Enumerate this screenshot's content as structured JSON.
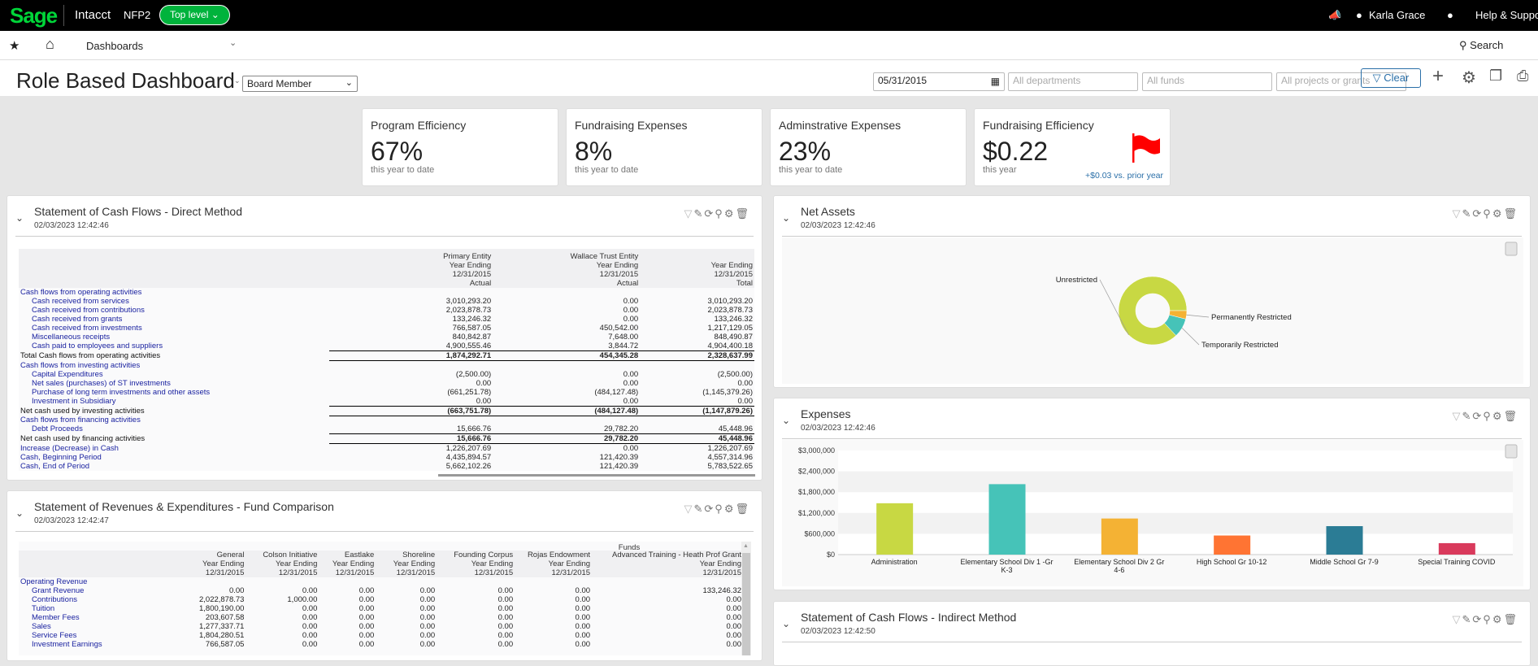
{
  "topbar": {
    "logo": "Sage",
    "app": "Intacct",
    "company": "NFP2",
    "entity": "Top level",
    "user": "Karla Grace",
    "help": "Help & Support"
  },
  "nav": {
    "menu": "Dashboards",
    "search": "Search"
  },
  "title": {
    "text": "Role Based Dashboard",
    "role": "Board Member",
    "date": "05/31/2015",
    "departments": "All departments",
    "funds": "All funds",
    "projects": "All projects or grants",
    "clear": "Clear"
  },
  "kpis": [
    {
      "title": "Program Efficiency",
      "value": "67%",
      "sub": "this year to date"
    },
    {
      "title": "Fundraising Expenses",
      "value": "8%",
      "sub": "this year to date"
    },
    {
      "title": "Adminstrative Expenses",
      "value": "23%",
      "sub": "this year to date"
    },
    {
      "title": "Fundraising Efficiency",
      "value": "$0.22",
      "sub": "this year",
      "delta": "+$0.03 vs. prior year",
      "flag_color": "#ff0000"
    }
  ],
  "cashflow": {
    "title": "Statement of Cash Flows - Direct Method",
    "date": "02/03/2023 12:42:46",
    "headers": [
      [
        "Primary Entity",
        "Year Ending",
        "12/31/2015",
        "Actual"
      ],
      [
        "Wallace Trust Entity",
        "Year Ending",
        "12/31/2015",
        "Actual"
      ],
      [
        "",
        "Year Ending",
        "12/31/2015",
        "Total"
      ]
    ],
    "rows": [
      {
        "label": "Cash flows from operating activities",
        "kind": "section",
        "values": [
          "",
          "",
          ""
        ]
      },
      {
        "label": "Cash received from services",
        "kind": "item",
        "values": [
          "3,010,293.20",
          "0.00",
          "3,010,293.20"
        ]
      },
      {
        "label": "Cash received from contributions",
        "kind": "item",
        "values": [
          "2,023,878.73",
          "0.00",
          "2,023,878.73"
        ]
      },
      {
        "label": "Cash received from grants",
        "kind": "item",
        "values": [
          "133,246.32",
          "0.00",
          "133,246.32"
        ]
      },
      {
        "label": "Cash received from investments",
        "kind": "item",
        "values": [
          "766,587.05",
          "450,542.00",
          "1,217,129.05"
        ]
      },
      {
        "label": "Miscellaneous receipts",
        "kind": "item",
        "values": [
          "840,842.87",
          "7,648.00",
          "848,490.87"
        ]
      },
      {
        "label": "Cash paid to employees and suppliers",
        "kind": "item",
        "values": [
          "4,900,555.46",
          "3,844.72",
          "4,904,400.18"
        ]
      },
      {
        "label": "Total Cash flows from operating activities",
        "kind": "total",
        "values": [
          "1,874,292.71",
          "454,345.28",
          "2,328,637.99"
        ]
      },
      {
        "label": "Cash flows from investing activities",
        "kind": "section",
        "values": [
          "",
          "",
          ""
        ]
      },
      {
        "label": "Capital Expenditures",
        "kind": "item",
        "values": [
          "(2,500.00)",
          "0.00",
          "(2,500.00)"
        ]
      },
      {
        "label": "Net sales (purchases) of ST investments",
        "kind": "item",
        "values": [
          "0.00",
          "0.00",
          "0.00"
        ]
      },
      {
        "label": "Purchase of long term investments and other assets",
        "kind": "item",
        "values": [
          "(661,251.78)",
          "(484,127.48)",
          "(1,145,379.26)"
        ]
      },
      {
        "label": "Investment in Subsidiary",
        "kind": "item",
        "values": [
          "0.00",
          "0.00",
          "0.00"
        ]
      },
      {
        "label": "Net cash used by investing activities",
        "kind": "total",
        "values": [
          "(663,751.78)",
          "(484,127.48)",
          "(1,147,879.26)"
        ]
      },
      {
        "label": "Cash flows from financing activities",
        "kind": "section",
        "values": [
          "",
          "",
          ""
        ]
      },
      {
        "label": "Debt Proceeds",
        "kind": "item",
        "values": [
          "15,666.76",
          "29,782.20",
          "45,448.96"
        ]
      },
      {
        "label": "Net cash used by financing activities",
        "kind": "total",
        "values": [
          "15,666.76",
          "29,782.20",
          "45,448.96"
        ]
      },
      {
        "label": "Increase (Decrease) in Cash",
        "kind": "section",
        "values": [
          "1,226,207.69",
          "0.00",
          "1,226,207.69"
        ]
      },
      {
        "label": "Cash, Beginning Period",
        "kind": "section",
        "values": [
          "4,435,894.57",
          "121,420.39",
          "4,557,314.96"
        ]
      },
      {
        "label": "Cash, End of Period",
        "kind": "section",
        "values": [
          "5,662,102.26",
          "121,420.39",
          "5,783,522.65"
        ]
      }
    ]
  },
  "fund": {
    "title": "Statement of Revenues & Expenditures - Fund Comparison",
    "date": "02/03/2023 12:42:47",
    "group": "Funds",
    "headers": [
      [
        "General",
        "Year Ending",
        "12/31/2015"
      ],
      [
        "Colson Initiative",
        "Year Ending",
        "12/31/2015"
      ],
      [
        "Eastlake",
        "Year Ending",
        "12/31/2015"
      ],
      [
        "Shoreline",
        "Year Ending",
        "12/31/2015"
      ],
      [
        "Founding Corpus",
        "Year Ending",
        "12/31/2015"
      ],
      [
        "Rojas Endowment",
        "Year Ending",
        "12/31/2015"
      ],
      [
        "Advanced Training - Heath Prof Grant",
        "Year Ending",
        "12/31/2015"
      ]
    ],
    "rows": [
      {
        "label": "Operating Revenue",
        "kind": "section",
        "values": [
          "",
          "",
          "",
          "",
          "",
          "",
          ""
        ]
      },
      {
        "label": "Grant Revenue",
        "kind": "item",
        "values": [
          "0.00",
          "0.00",
          "0.00",
          "0.00",
          "0.00",
          "0.00",
          "133,246.32"
        ]
      },
      {
        "label": "Contributions",
        "kind": "item",
        "values": [
          "2,022,878.73",
          "1,000.00",
          "0.00",
          "0.00",
          "0.00",
          "0.00",
          "0.00"
        ]
      },
      {
        "label": "Tuition",
        "kind": "item",
        "values": [
          "1,800,190.00",
          "0.00",
          "0.00",
          "0.00",
          "0.00",
          "0.00",
          "0.00"
        ]
      },
      {
        "label": "Member Fees",
        "kind": "item",
        "values": [
          "203,607.58",
          "0.00",
          "0.00",
          "0.00",
          "0.00",
          "0.00",
          "0.00"
        ]
      },
      {
        "label": "Sales",
        "kind": "item",
        "values": [
          "1,277,337.71",
          "0.00",
          "0.00",
          "0.00",
          "0.00",
          "0.00",
          "0.00"
        ]
      },
      {
        "label": "Service Fees",
        "kind": "item",
        "values": [
          "1,804,280.51",
          "0.00",
          "0.00",
          "0.00",
          "0.00",
          "0.00",
          "0.00"
        ]
      },
      {
        "label": "Investment Earnings",
        "kind": "item",
        "values": [
          "766,587.05",
          "0.00",
          "0.00",
          "0.00",
          "0.00",
          "0.00",
          "0.00"
        ]
      }
    ]
  },
  "netassets": {
    "title": "Net Assets",
    "date": "02/03/2023 12:42:46"
  },
  "expenses": {
    "title": "Expenses",
    "date": "02/03/2023 12:42:46"
  },
  "indirect": {
    "title": "Statement of Cash Flows - Indirect Method",
    "date": "02/03/2023 12:42:50"
  },
  "chart_data": [
    {
      "type": "pie",
      "donut": true,
      "categories": [
        "Unrestricted",
        "Permanently Restricted",
        "Temporarily Restricted"
      ],
      "values": [
        87,
        4,
        9
      ],
      "colors": [
        "#c8d843",
        "#f4b234",
        "#46c3b8"
      ],
      "legend": "none"
    },
    {
      "type": "bar",
      "categories": [
        "Administration",
        "Elementary School Div 1 -Gr K-3",
        "Elementary School Div 2 Gr 4-6",
        "High School Gr 10-12",
        "Middle School Gr 7-9",
        "Special Training COVID"
      ],
      "values": [
        1480000,
        2030000,
        1040000,
        550000,
        820000,
        330000
      ],
      "colors": [
        "#c8d843",
        "#46c3b8",
        "#f4b234",
        "#ff7433",
        "#2b7c95",
        "#d93a5c"
      ],
      "yticks": [
        "$0",
        "$600,000",
        "$1,200,000",
        "$1,800,000",
        "$2,400,000",
        "$3,000,000"
      ],
      "ylim": [
        0,
        3000000
      ],
      "grid": "bands"
    }
  ]
}
